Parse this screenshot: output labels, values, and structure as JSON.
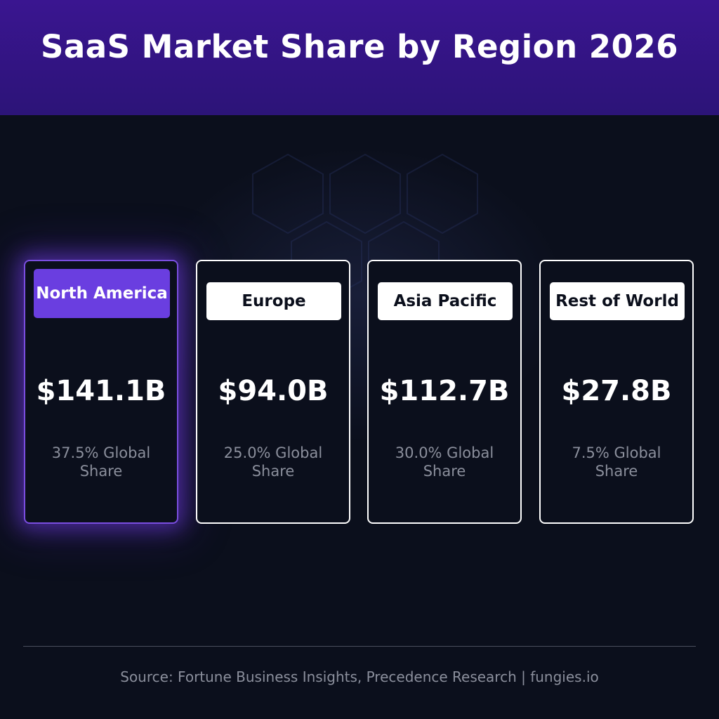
{
  "header": {
    "title": "SaaS Market Share by Region 2026"
  },
  "chart_data": {
    "type": "table",
    "title": "SaaS Market Share by Region 2026",
    "categories": [
      "North America",
      "Europe",
      "Asia Pacific",
      "Rest of World"
    ],
    "values_billion_usd": [
      141.1,
      94.0,
      112.7,
      27.8
    ],
    "global_share_percent": [
      37.5,
      25.0,
      30.0,
      7.5
    ],
    "highlighted": "North America",
    "cards": [
      {
        "region": "North America",
        "value_label": "$141.1B",
        "share_label": "37.5% Global Share"
      },
      {
        "region": "Europe",
        "value_label": "$94.0B",
        "share_label": "25.0% Global Share"
      },
      {
        "region": "Asia Pacific",
        "value_label": "$112.7B",
        "share_label": "30.0% Global Share"
      },
      {
        "region": "Rest of World",
        "value_label": "$27.8B",
        "share_label": "7.5% Global Share"
      }
    ]
  },
  "footer": {
    "source": "Source: Fortune Business Insights, Precedence Research | fungies.io"
  },
  "colors": {
    "header_bg": "#3a1590",
    "page_bg": "#0b0f1c",
    "accent": "#6a3ee0",
    "card_border": "#ffffff",
    "muted_text": "#8b8f9c"
  }
}
